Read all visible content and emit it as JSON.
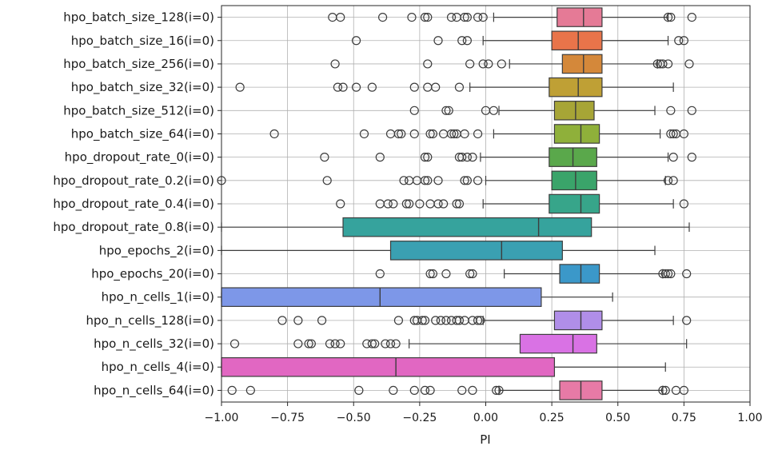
{
  "chart_data": {
    "type": "boxplot",
    "orientation": "horizontal",
    "xlabel": "PI",
    "xlim": [
      -1.0,
      1.0
    ],
    "xticks": [
      -1.0,
      -0.75,
      -0.5,
      -0.25,
      0.0,
      0.25,
      0.5,
      0.75,
      1.0
    ],
    "xtick_labels": [
      "−1.00",
      "−0.75",
      "−0.50",
      "−0.25",
      "0.00",
      "0.25",
      "0.50",
      "0.75",
      "1.00"
    ],
    "grid": true,
    "series": [
      {
        "name": "hpo_batch_size_128(i=0)",
        "color": "#e57a96",
        "whislo": 0.03,
        "q1": 0.27,
        "med": 0.37,
        "q3": 0.44,
        "whishi": 0.69,
        "outliers": [
          -0.58,
          -0.55,
          -0.39,
          -0.28,
          -0.23,
          -0.22,
          -0.13,
          -0.11,
          -0.08,
          -0.07,
          -0.03,
          -0.01,
          0.69,
          0.7,
          0.78
        ]
      },
      {
        "name": "hpo_batch_size_16(i=0)",
        "color": "#e8744a",
        "whislo": -0.01,
        "q1": 0.25,
        "med": 0.35,
        "q3": 0.44,
        "whishi": 0.69,
        "outliers": [
          -0.49,
          -0.18,
          -0.09,
          -0.07,
          0.73,
          0.75
        ]
      },
      {
        "name": "hpo_batch_size_256(i=0)",
        "color": "#d4883a",
        "whislo": 0.09,
        "q1": 0.29,
        "med": 0.37,
        "q3": 0.44,
        "whishi": 0.65,
        "outliers": [
          -0.57,
          -0.22,
          -0.06,
          -0.01,
          0.01,
          0.06,
          0.65,
          0.66,
          0.67,
          0.69,
          0.77
        ]
      },
      {
        "name": "hpo_batch_size_32(i=0)",
        "color": "#bfa035",
        "whislo": -0.06,
        "q1": 0.24,
        "med": 0.35,
        "q3": 0.44,
        "whishi": 0.71,
        "outliers": [
          -0.93,
          -0.56,
          -0.54,
          -0.49,
          -0.43,
          -0.27,
          -0.22,
          -0.19,
          -0.1
        ]
      },
      {
        "name": "hpo_batch_size_512(i=0)",
        "color": "#a7a536",
        "whislo": 0.05,
        "q1": 0.26,
        "med": 0.34,
        "q3": 0.41,
        "whishi": 0.64,
        "outliers": [
          -0.27,
          -0.15,
          -0.14,
          0.0,
          0.03,
          0.7,
          0.78
        ]
      },
      {
        "name": "hpo_batch_size_64(i=0)",
        "color": "#8fb03a",
        "whislo": 0.03,
        "q1": 0.26,
        "med": 0.36,
        "q3": 0.43,
        "whishi": 0.66,
        "outliers": [
          -0.8,
          -0.46,
          -0.36,
          -0.33,
          -0.32,
          -0.27,
          -0.21,
          -0.2,
          -0.16,
          -0.13,
          -0.12,
          -0.11,
          -0.08,
          -0.03,
          0.7,
          0.71,
          0.72,
          0.75
        ]
      },
      {
        "name": "hpo_dropout_rate_0(i=0)",
        "color": "#5aa84b",
        "whislo": -0.02,
        "q1": 0.24,
        "med": 0.33,
        "q3": 0.42,
        "whishi": 0.69,
        "outliers": [
          -0.61,
          -0.4,
          -0.23,
          -0.22,
          -0.1,
          -0.09,
          -0.07,
          -0.05,
          0.71,
          0.78
        ]
      },
      {
        "name": "hpo_dropout_rate_0.2(i=0)",
        "color": "#3aa46a",
        "whislo": 0.0,
        "q1": 0.25,
        "med": 0.34,
        "q3": 0.42,
        "whishi": 0.68,
        "outliers": [
          -1.0,
          -0.6,
          -0.31,
          -0.29,
          -0.26,
          -0.23,
          -0.22,
          -0.18,
          -0.08,
          -0.07,
          -0.03,
          0.69,
          0.71
        ]
      },
      {
        "name": "hpo_dropout_rate_0.4(i=0)",
        "color": "#37a58a",
        "whislo": -0.01,
        "q1": 0.24,
        "med": 0.36,
        "q3": 0.43,
        "whishi": 0.71,
        "outliers": [
          -0.55,
          -0.4,
          -0.37,
          -0.35,
          -0.3,
          -0.29,
          -0.25,
          -0.21,
          -0.18,
          -0.16,
          -0.11,
          -0.1,
          0.75
        ]
      },
      {
        "name": "hpo_dropout_rate_0.8(i=0)",
        "color": "#36a39d",
        "whislo": -1.0,
        "q1": -0.54,
        "med": 0.2,
        "q3": 0.4,
        "whishi": 0.77,
        "outliers": []
      },
      {
        "name": "hpo_epochs_2(i=0)",
        "color": "#3aa0b2",
        "whislo": -1.0,
        "q1": -0.36,
        "med": 0.06,
        "q3": 0.29,
        "whishi": 0.64,
        "outliers": []
      },
      {
        "name": "hpo_epochs_20(i=0)",
        "color": "#3b98c9",
        "whislo": 0.07,
        "q1": 0.28,
        "med": 0.36,
        "q3": 0.43,
        "whishi": 0.67,
        "outliers": [
          -0.4,
          -0.21,
          -0.2,
          -0.15,
          -0.06,
          -0.05,
          0.67,
          0.68,
          0.69,
          0.7,
          0.76
        ]
      },
      {
        "name": "hpo_n_cells_1(i=0)",
        "color": "#7d97e8",
        "whislo": -1.0,
        "q1": -1.0,
        "med": -0.4,
        "q3": 0.21,
        "whishi": 0.48,
        "outliers": []
      },
      {
        "name": "hpo_n_cells_128(i=0)",
        "color": "#b08ee8",
        "whislo": -0.01,
        "q1": 0.26,
        "med": 0.36,
        "q3": 0.44,
        "whishi": 0.71,
        "outliers": [
          -0.77,
          -0.71,
          -0.62,
          -0.33,
          -0.27,
          -0.26,
          -0.24,
          -0.23,
          -0.19,
          -0.17,
          -0.15,
          -0.13,
          -0.11,
          -0.1,
          -0.08,
          -0.05,
          -0.03,
          -0.02,
          0.76
        ]
      },
      {
        "name": "hpo_n_cells_32(i=0)",
        "color": "#d972e4",
        "whislo": -0.29,
        "q1": 0.13,
        "med": 0.33,
        "q3": 0.42,
        "whishi": 0.76,
        "outliers": [
          -0.95,
          -0.71,
          -0.67,
          -0.66,
          -0.59,
          -0.57,
          -0.55,
          -0.45,
          -0.43,
          -0.42,
          -0.38,
          -0.36,
          -0.34
        ]
      },
      {
        "name": "hpo_n_cells_4(i=0)",
        "color": "#e167c2",
        "whislo": -1.0,
        "q1": -1.0,
        "med": -0.34,
        "q3": 0.26,
        "whishi": 0.68,
        "outliers": []
      },
      {
        "name": "hpo_n_cells_64(i=0)",
        "color": "#e77aa6",
        "whislo": 0.05,
        "q1": 0.28,
        "med": 0.36,
        "q3": 0.44,
        "whishi": 0.67,
        "outliers": [
          -0.96,
          -0.89,
          -0.48,
          -0.35,
          -0.27,
          -0.23,
          -0.21,
          -0.09,
          -0.05,
          0.04,
          0.05,
          0.67,
          0.68,
          0.72,
          0.75
        ]
      }
    ]
  }
}
